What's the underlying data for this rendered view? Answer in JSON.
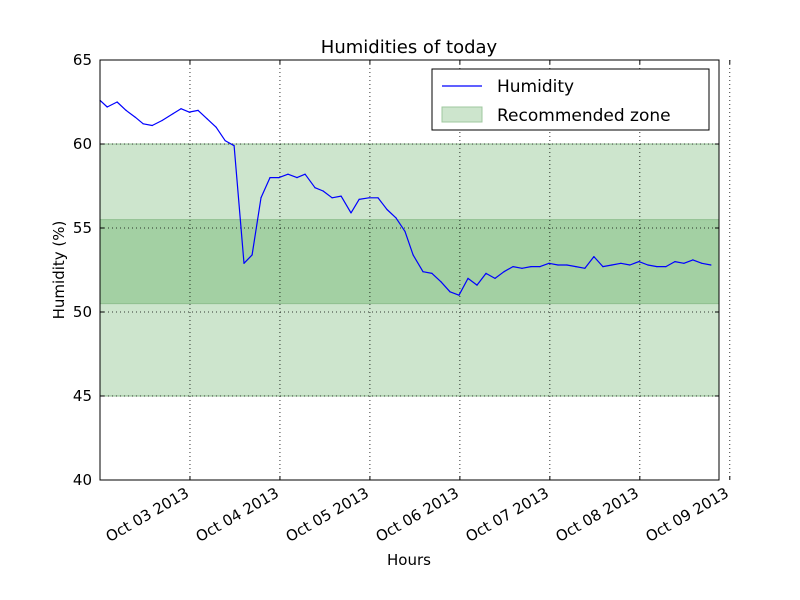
{
  "chart_data": {
    "type": "line",
    "title": "Humidities of today",
    "xlabel": "Hours",
    "ylabel": "Humidity (%)",
    "ylim": [
      40,
      65
    ],
    "xlim": [
      "Oct 02 2013",
      "Oct 09 2013"
    ],
    "xlim_end_day_fraction": 6.88,
    "yticks": [
      40,
      45,
      50,
      55,
      60,
      65
    ],
    "xtick_labels": [
      "Oct 03 2013",
      "Oct 04 2013",
      "Oct 05 2013",
      "Oct 06 2013",
      "Oct 07 2013",
      "Oct 08 2013",
      "Oct 09 2013"
    ],
    "grid": true,
    "legend_position": "top-right",
    "bands": [
      {
        "name": "Recommended zone",
        "from": 45,
        "to": 60,
        "color": "#cde5cd"
      },
      {
        "from": 50.5,
        "to": 55.5,
        "color": "#a3d0a3"
      }
    ],
    "series": [
      {
        "name": "Humidity",
        "color": "#0000ff",
        "x_days": [
          0.0,
          0.08,
          0.19,
          0.29,
          0.39,
          0.48,
          0.58,
          0.69,
          0.81,
          0.9,
          0.99,
          1.09,
          1.19,
          1.29,
          1.39,
          1.49,
          1.6,
          1.69,
          1.79,
          1.89,
          1.99,
          2.09,
          2.19,
          2.28,
          2.39,
          2.48,
          2.58,
          2.68,
          2.79,
          2.88,
          2.99,
          3.09,
          3.19,
          3.29,
          3.39,
          3.48,
          3.59,
          3.69,
          3.79,
          3.89,
          3.99,
          4.09,
          4.19,
          4.29,
          4.39,
          4.49,
          4.59,
          4.69,
          4.79,
          4.89,
          4.99,
          5.09,
          5.19,
          5.29,
          5.39,
          5.49,
          5.59,
          5.69,
          5.79,
          5.89,
          5.99,
          6.09,
          6.19,
          6.29,
          6.39,
          6.49,
          6.59,
          6.69,
          6.79
        ],
        "y": [
          62.6,
          62.2,
          62.5,
          62.0,
          61.6,
          61.2,
          61.1,
          61.4,
          61.8,
          62.1,
          61.9,
          62.0,
          61.5,
          61.0,
          60.2,
          59.9,
          52.9,
          53.4,
          56.8,
          58.0,
          58.0,
          58.2,
          58.0,
          58.2,
          57.4,
          57.2,
          56.8,
          56.9,
          55.9,
          56.7,
          56.8,
          56.8,
          56.1,
          55.6,
          54.8,
          53.4,
          52.4,
          52.3,
          51.8,
          51.2,
          51.0,
          52.0,
          51.6,
          52.3,
          52.0,
          52.4,
          52.7,
          52.6,
          52.7,
          52.7,
          52.9,
          52.8,
          52.8,
          52.7,
          52.6,
          53.3,
          52.7,
          52.8,
          52.9,
          52.8,
          53.0,
          52.8,
          52.7,
          52.7,
          53.0,
          52.9,
          53.1,
          52.9,
          52.8
        ]
      }
    ],
    "legend": [
      {
        "label": "Humidity",
        "kind": "line",
        "color": "#0000ff"
      },
      {
        "label": "Recommended zone",
        "kind": "patch",
        "color": "#cde5cd"
      }
    ]
  }
}
